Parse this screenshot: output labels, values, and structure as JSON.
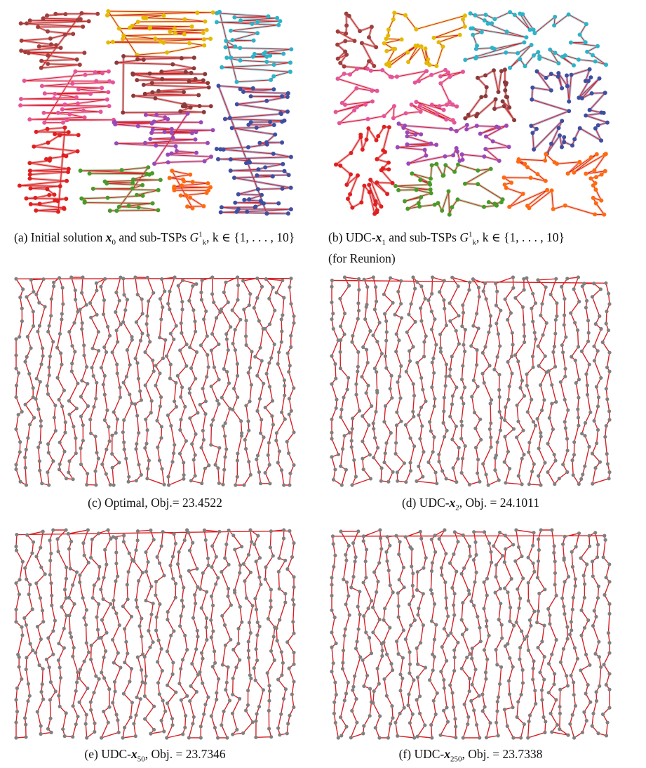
{
  "figure": {
    "panels": [
      {
        "id": "a",
        "kind": "sub-tsp-partition",
        "caption": {
          "prefix": "(a) Initial solution ",
          "var": "x",
          "sub": "0",
          "mid": " and sub-TSPs ",
          "graph": "G",
          "graph_sup": "1",
          "graph_sub": "k",
          "tail": ", k ∈ {1, . . . , 10}",
          "extra": ""
        }
      },
      {
        "id": "b",
        "kind": "sub-tsp-partition",
        "caption": {
          "prefix": "(b) UDC-",
          "var": "x",
          "sub": "1",
          "mid": " and sub-TSPs ",
          "graph": "G",
          "graph_sup": "1",
          "graph_sub": "k",
          "tail": ", k ∈ {1, . . . , 10}",
          "extra": "(for Reunion)"
        }
      },
      {
        "id": "c",
        "kind": "tour",
        "caption": {
          "text": "(c) Optimal, Obj.= 23.4522"
        }
      },
      {
        "id": "d",
        "kind": "tour",
        "caption": {
          "prefix": "(d) UDC-",
          "var": "x",
          "sub": "2",
          "tail": ", Obj. = 24.1011"
        }
      },
      {
        "id": "e",
        "kind": "tour",
        "caption": {
          "prefix": "(e) UDC-",
          "var": "x",
          "sub": "50",
          "tail": ", Obj. = 23.7346"
        }
      },
      {
        "id": "f",
        "kind": "tour",
        "caption": {
          "prefix": "(f) UDC-",
          "var": "x",
          "sub": "250",
          "tail": ", Obj. = 23.7338"
        }
      }
    ],
    "colors": {
      "tour_edge": "#d62024",
      "tour_node": "#808080",
      "subtsp": [
        "#a0403e",
        "#e6b800",
        "#2eb3c8",
        "#e5559a",
        "#8b3a3a",
        "#9b48b8",
        "#3f4fa0",
        "#e02020",
        "#4a9a2a",
        "#ff6a10"
      ]
    }
  }
}
